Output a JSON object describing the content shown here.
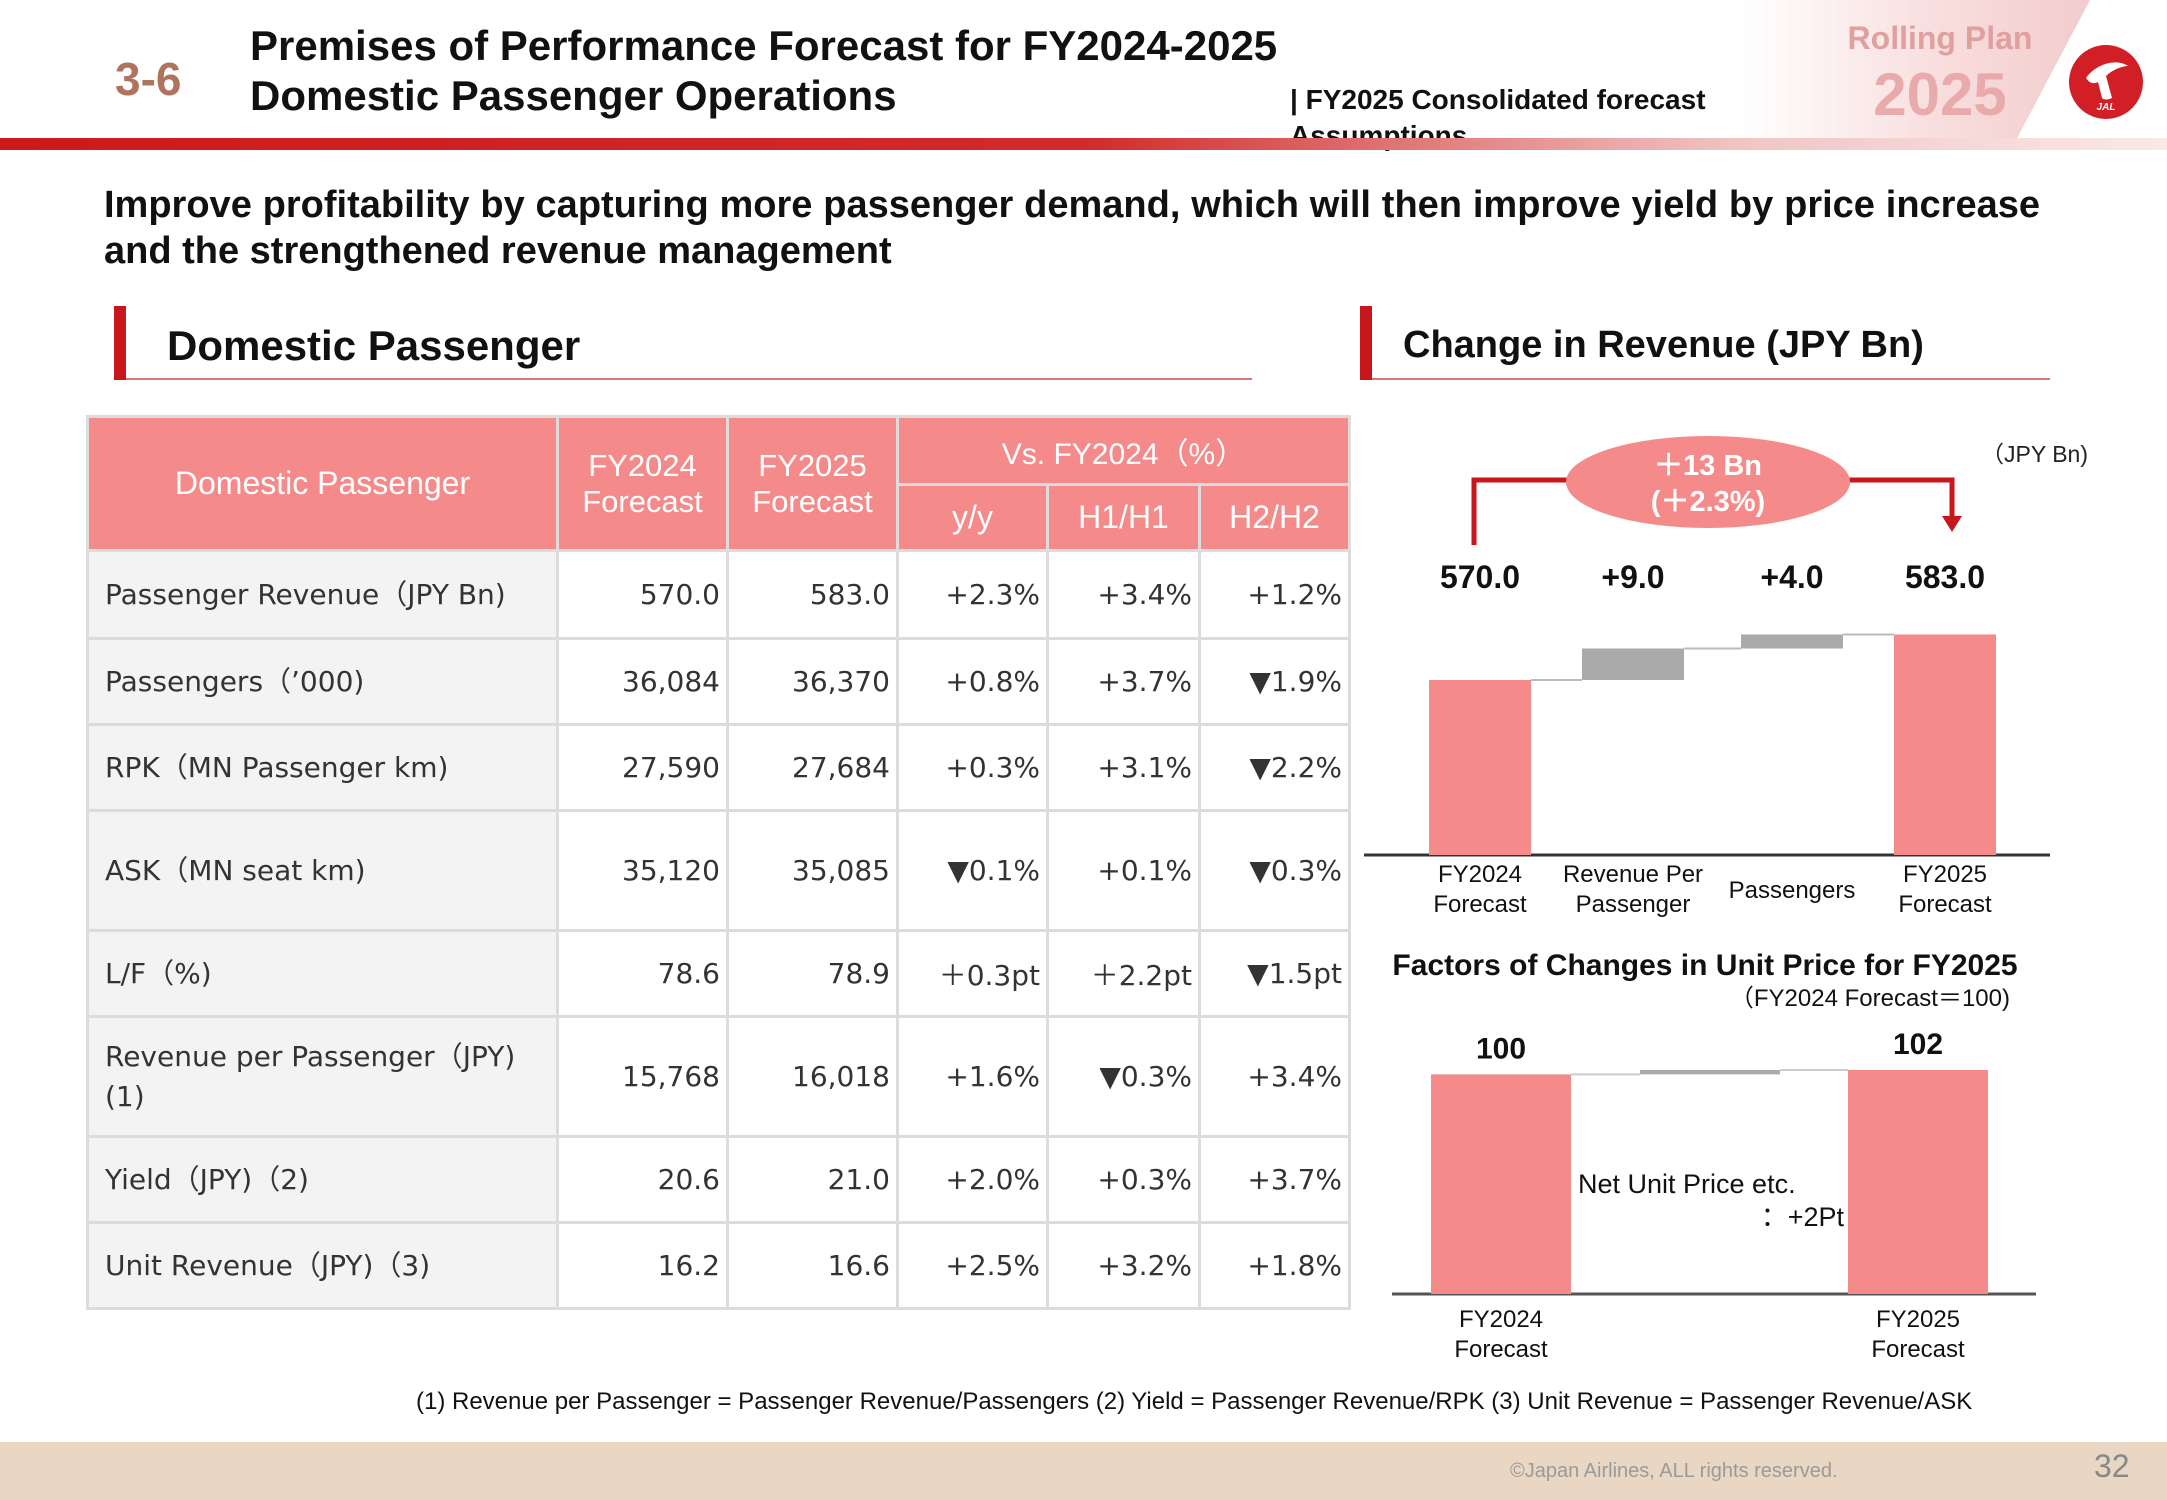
{
  "header": {
    "section_number": "3-6",
    "title_line1": "Premises of Performance Forecast for FY2024-2025",
    "title_line2": "Domestic Passenger Operations",
    "subtitle": "| FY2025 Consolidated forecast Assumptions",
    "rolling_label": "Rolling Plan",
    "rolling_year": "2025",
    "logo_text": "JAL",
    "colors": {
      "accent": "#c8161d",
      "table_header": "#f48a8a",
      "bar": "#f48a8a",
      "delta_bar": "#aaaaaa"
    }
  },
  "lead_text": "Improve profitability by capturing more passenger demand, which will then improve yield by price increase and the strengthened revenue management",
  "left_section": {
    "title": "Domestic Passenger"
  },
  "table": {
    "headers": {
      "label": "Domestic Passenger",
      "fy2024": "FY2024\nForecast",
      "fy2025": "FY2025\nForecast",
      "vs": "Vs. FY2024（%）",
      "yy": "y/y",
      "h1": "H1/H1",
      "h2": "H2/H2"
    },
    "rows": [
      [
        "Passenger Revenue（JPY Bn)",
        "570.0",
        "583.0",
        "+2.3%",
        "+3.4%",
        "+1.2%"
      ],
      [
        "Passengers（’000)",
        "36,084",
        "36,370",
        "+0.8%",
        "+3.7%",
        "▼1.9%"
      ],
      [
        "RPK（MN Passenger km)",
        "27,590",
        "27,684",
        "+0.3%",
        "+3.1%",
        "▼2.2%"
      ],
      [
        "ASK（MN seat km)",
        "35,120",
        "35,085",
        "▼0.1%",
        "+0.1%",
        "▼0.3%"
      ],
      [
        "L/F（%)",
        "78.6",
        "78.9",
        "＋0.3pt",
        "＋2.2pt",
        "▼1.5pt"
      ],
      [
        "Revenue per Passenger（JPY)\n(1)",
        "15,768",
        "16,018",
        "+1.6%",
        "▼0.3%",
        "+3.4%"
      ],
      [
        "Yield（JPY)（2)",
        "20.6",
        "21.0",
        "+2.0%",
        "+0.3%",
        "+3.7%"
      ],
      [
        "Unit Revenue（JPY)（3)",
        "16.2",
        "16.6",
        "+2.5%",
        "+3.2%",
        "+1.8%"
      ]
    ]
  },
  "right_section": {
    "title": "Change in Revenue (JPY Bn)"
  },
  "chart_data": [
    {
      "type": "waterfall",
      "unit": "（JPY Bn)",
      "callout": "＋13 Bn\n(＋2.3%)",
      "categories": [
        "FY2024\nForecast",
        "Revenue Per\nPassenger",
        "Passengers",
        "FY2025\nForecast"
      ],
      "values": [
        570.0,
        9.0,
        4.0,
        583.0
      ],
      "value_labels": [
        "570.0",
        "+9.0",
        "+4.0",
        "583.0"
      ],
      "bar_kinds": [
        "total",
        "delta",
        "delta",
        "total"
      ]
    },
    {
      "type": "waterfall",
      "title": "Factors of Changes in Unit Price for FY2025",
      "subtitle": "（FY2024 Forecast＝100)",
      "categories": [
        "FY2024\nForecast",
        "FY2025\nForecast"
      ],
      "values": [
        100,
        102
      ],
      "value_labels": [
        "100",
        "102"
      ],
      "annotation_line1": "Net Unit Price etc.",
      "annotation_line2": "：+2Pt"
    }
  ],
  "footnote": "(1) Revenue per Passenger = Passenger Revenue/Passengers  (2) Yield = Passenger Revenue/RPK  (3) Unit Revenue = Passenger Revenue/ASK",
  "footer": {
    "copyright": "©Japan Airlines, ALL rights reserved.",
    "page_number": "32"
  }
}
